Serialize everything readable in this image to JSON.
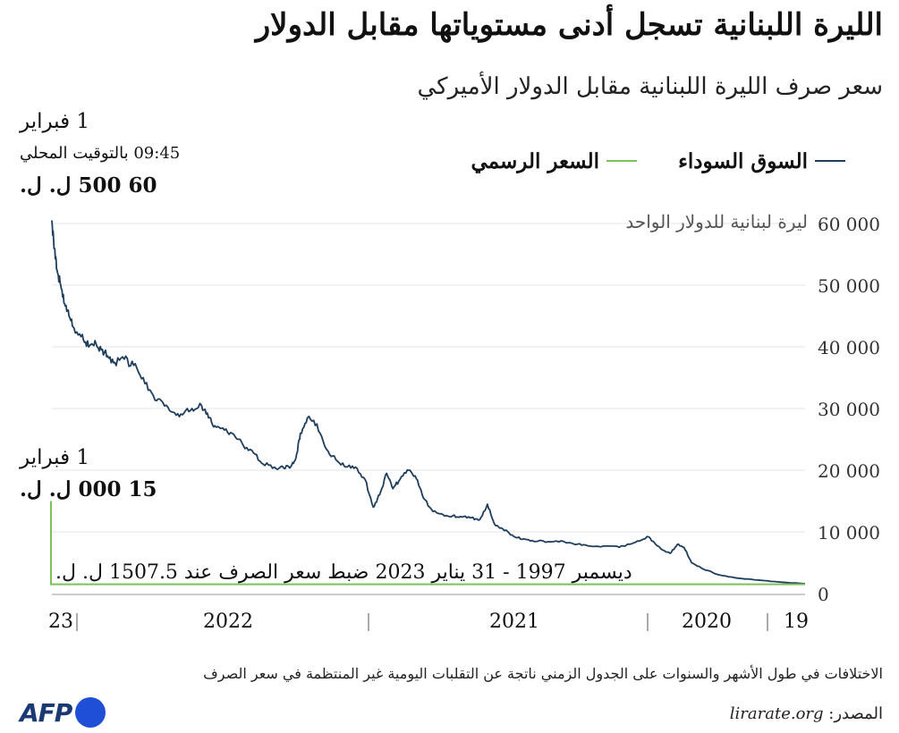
{
  "title": "الليرة اللبنانية تسجل أدنى مستوياتها مقابل الدولار",
  "subtitle": "سعر صرف الليرة اللبنانية مقابل الدولار الأميركي",
  "annotations": {
    "top": {
      "date": "1 فبراير",
      "time": "09:45 بالتوقيت المحلي",
      "value": "60 500 ل. ل."
    },
    "mid": {
      "date": "1 فبراير",
      "value": "15 000 ل. ل."
    },
    "official_note": "ديسمبر 1997 - 31 يناير 2023 ضبط سعر الصرف عند 1507.5 ل. ل."
  },
  "footnote": "الاختلافات في طول الأشهر والسنوات على الجدول الزمني ناتجة عن التقلبات اليومية غير المنتظمة في سعر الصرف",
  "source": {
    "label": "المصدر:",
    "value": "lirarate.org"
  },
  "logo_text": "AFP",
  "colors": {
    "black_market": "#1f3d5c",
    "official": "#7dc15a",
    "grid": "#e4e4e4",
    "axis": "#444444"
  },
  "chart_data": {
    "type": "line",
    "subtitle": "سعر صرف الليرة اللبنانية مقابل الدولار الأميركي",
    "ylabel": "ليرة لبنانية للدولار الواحد",
    "ylim": [
      0,
      60000
    ],
    "y_ticks": [
      "0",
      "10 000",
      "20 000",
      "30 000",
      "40 000",
      "50 000",
      "60 000"
    ],
    "y_tick_values": [
      0,
      10000,
      20000,
      30000,
      40000,
      50000,
      60000
    ],
    "y_axis_side": "right",
    "x_direction": "right-to-left",
    "x_tick_labels": [
      "19",
      "2020",
      "2021",
      "2022",
      "23"
    ],
    "x_range": [
      "2019-11-01",
      "2023-02-01"
    ],
    "grid": true,
    "legend": "top-right",
    "series": [
      {
        "name": "السوق السوداء",
        "color": "#1f3d5c",
        "x": [
          "2019-11-01",
          "2019-12-15",
          "2020-01-15",
          "2020-02-15",
          "2020-03-15",
          "2020-04-10",
          "2020-04-28",
          "2020-05-10",
          "2020-05-20",
          "2020-06-01",
          "2020-06-15",
          "2020-06-28",
          "2020-07-05",
          "2020-07-20",
          "2020-08-05",
          "2020-08-20",
          "2020-09-10",
          "2020-10-05",
          "2020-10-25",
          "2020-11-15",
          "2020-12-10",
          "2021-01-05",
          "2021-01-20",
          "2021-02-05",
          "2021-02-20",
          "2021-03-05",
          "2021-03-16",
          "2021-03-28",
          "2021-04-10",
          "2021-04-25",
          "2021-05-10",
          "2021-05-25",
          "2021-06-10",
          "2021-06-25",
          "2021-07-06",
          "2021-07-18",
          "2021-08-01",
          "2021-08-12",
          "2021-08-22",
          "2021-09-02",
          "2021-09-12",
          "2021-09-25",
          "2021-10-10",
          "2021-10-25",
          "2021-11-10",
          "2021-11-25",
          "2021-12-10",
          "2021-12-25",
          "2022-01-05",
          "2022-01-12",
          "2022-01-20",
          "2022-01-31",
          "2022-02-15",
          "2022-03-05",
          "2022-03-20",
          "2022-04-05",
          "2022-04-20",
          "2022-05-05",
          "2022-05-20",
          "2022-05-30",
          "2022-06-10",
          "2022-06-25",
          "2022-07-10",
          "2022-07-25",
          "2022-08-10",
          "2022-08-25",
          "2022-09-10",
          "2022-09-25",
          "2022-10-10",
          "2022-10-25",
          "2022-11-05",
          "2022-11-15",
          "2022-11-25",
          "2022-12-05",
          "2022-12-15",
          "2022-12-28",
          "2023-01-05",
          "2023-01-12",
          "2023-01-18",
          "2023-01-24",
          "2023-01-28",
          "2023-02-01"
        ],
        "values": [
          1600,
          1900,
          2200,
          2500,
          3000,
          4000,
          5000,
          7500,
          8000,
          6500,
          7200,
          8500,
          9200,
          8500,
          8000,
          7500,
          7700,
          7700,
          8000,
          8400,
          8400,
          8600,
          8800,
          9500,
          10500,
          11300,
          14500,
          12000,
          12300,
          12400,
          12600,
          12800,
          13300,
          15500,
          18600,
          20000,
          18500,
          17000,
          19500,
          16000,
          14000,
          18500,
          20500,
          20500,
          21700,
          23400,
          27500,
          28500,
          26000,
          22000,
          20600,
          20300,
          20500,
          21000,
          22800,
          24000,
          25800,
          26500,
          27200,
          28500,
          30500,
          30000,
          29000,
          29400,
          31000,
          32100,
          35000,
          37000,
          38000,
          37500,
          38500,
          39500,
          41000,
          40000,
          42000,
          43000,
          45000,
          47000,
          50000,
          52500,
          56000,
          60500
        ]
      },
      {
        "name": "السعر الرسمي",
        "color": "#7dc15a",
        "x": [
          "2019-11-01",
          "2023-01-31",
          "2023-02-01",
          "2023-02-01"
        ],
        "values": [
          1507.5,
          1507.5,
          1507.5,
          15000
        ]
      }
    ]
  }
}
